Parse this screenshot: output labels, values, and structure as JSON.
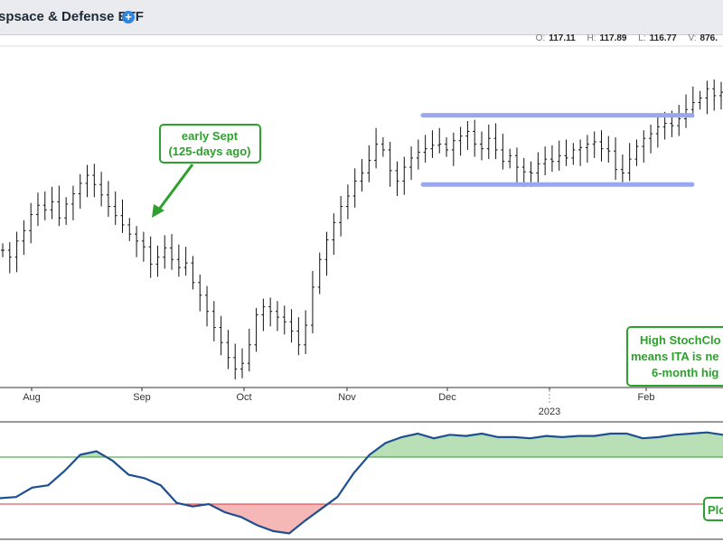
{
  "header": {
    "title": "spsace & Defense ETF",
    "plus": "+"
  },
  "ohlc": {
    "o_label": "O:",
    "o": "117.11",
    "h_label": "H:",
    "h": "117.89",
    "l_label": "L:",
    "l": "116.77",
    "v_label": "V:",
    "v": "876."
  },
  "annotations": {
    "early_sept_line1": "early Sept",
    "early_sept_line2": "(125-days ago)",
    "stoch_line1": "High StochClo",
    "stoch_line2": "means ITA is ne",
    "stoch_line3": "6-month hig",
    "plot_label": "Plo"
  },
  "colors": {
    "bar": "#111111",
    "channel": "#9aa7ee",
    "annotation": "#2ea02e",
    "osc_line": "#1d4f91",
    "osc_pos_fill": "#b9dfb6",
    "osc_neg_fill": "#f6b7b7",
    "upper_ref": "#2e9a2e",
    "lower_ref": "#d63a3a"
  },
  "chart_data": [
    {
      "type": "ohlc",
      "x_tick_labels": [
        "Aug",
        "Sep",
        "Oct",
        "Nov",
        "Dec",
        "2023",
        "Feb"
      ],
      "channel": {
        "upper": 117.1,
        "lower": 111.1,
        "from": "Dec",
        "to": "Feb"
      },
      "ylim": [
        93.5,
        123.1
      ],
      "closes": [
        105.4,
        104.8,
        106.2,
        107.1,
        108.5,
        109.3,
        108.9,
        109.6,
        108.2,
        109.4,
        110.3,
        111.2,
        111.9,
        111.1,
        110.2,
        109.2,
        108.4,
        107.6,
        106.8,
        106.2,
        105.7,
        104.2,
        104.8,
        105.6,
        104.6,
        103.9,
        104.3,
        102.6,
        101.5,
        100.1,
        98.7,
        97.4,
        96.1,
        95.1,
        95.6,
        97.2,
        99.8,
        100.5,
        100.1,
        99.6,
        99.2,
        98.4,
        97.2,
        98.9,
        102.2,
        104.6,
        106.3,
        107.8,
        109.2,
        110.1,
        111.4,
        112.1,
        113.2,
        114.6,
        114.1,
        112.3,
        111.4,
        112.6,
        113.4,
        113.9,
        114.2,
        114.5,
        114.6,
        114.1,
        114.9,
        115.3,
        115.7,
        114.6,
        114.2,
        115.1,
        114.1,
        113.1,
        113.6,
        112.6,
        112.2,
        112.1,
        112.9,
        113.3,
        113.1,
        113.6,
        113.4,
        114.1,
        114.3,
        114.6,
        114.8,
        114.2,
        114.0,
        112.4,
        112.1,
        113.3,
        114.4,
        115.1,
        115.5,
        116.1,
        116.4,
        116.2,
        116.8,
        117.6,
        118.2,
        118.6,
        119.4,
        118.8,
        119.1
      ]
    },
    {
      "type": "area",
      "name": "StochClose",
      "ylim": [
        0,
        100
      ],
      "reference_lines": [
        70,
        30
      ],
      "values": [
        35,
        36,
        44,
        46,
        58,
        72,
        75,
        67,
        55,
        52,
        46,
        31,
        28,
        30,
        23,
        19,
        12,
        7,
        5,
        16,
        26,
        36,
        56,
        72,
        82,
        87,
        90,
        86,
        89,
        88,
        90,
        87,
        87,
        86,
        88,
        87,
        88,
        88,
        90,
        90,
        86,
        87,
        89,
        90,
        91,
        89
      ]
    }
  ]
}
